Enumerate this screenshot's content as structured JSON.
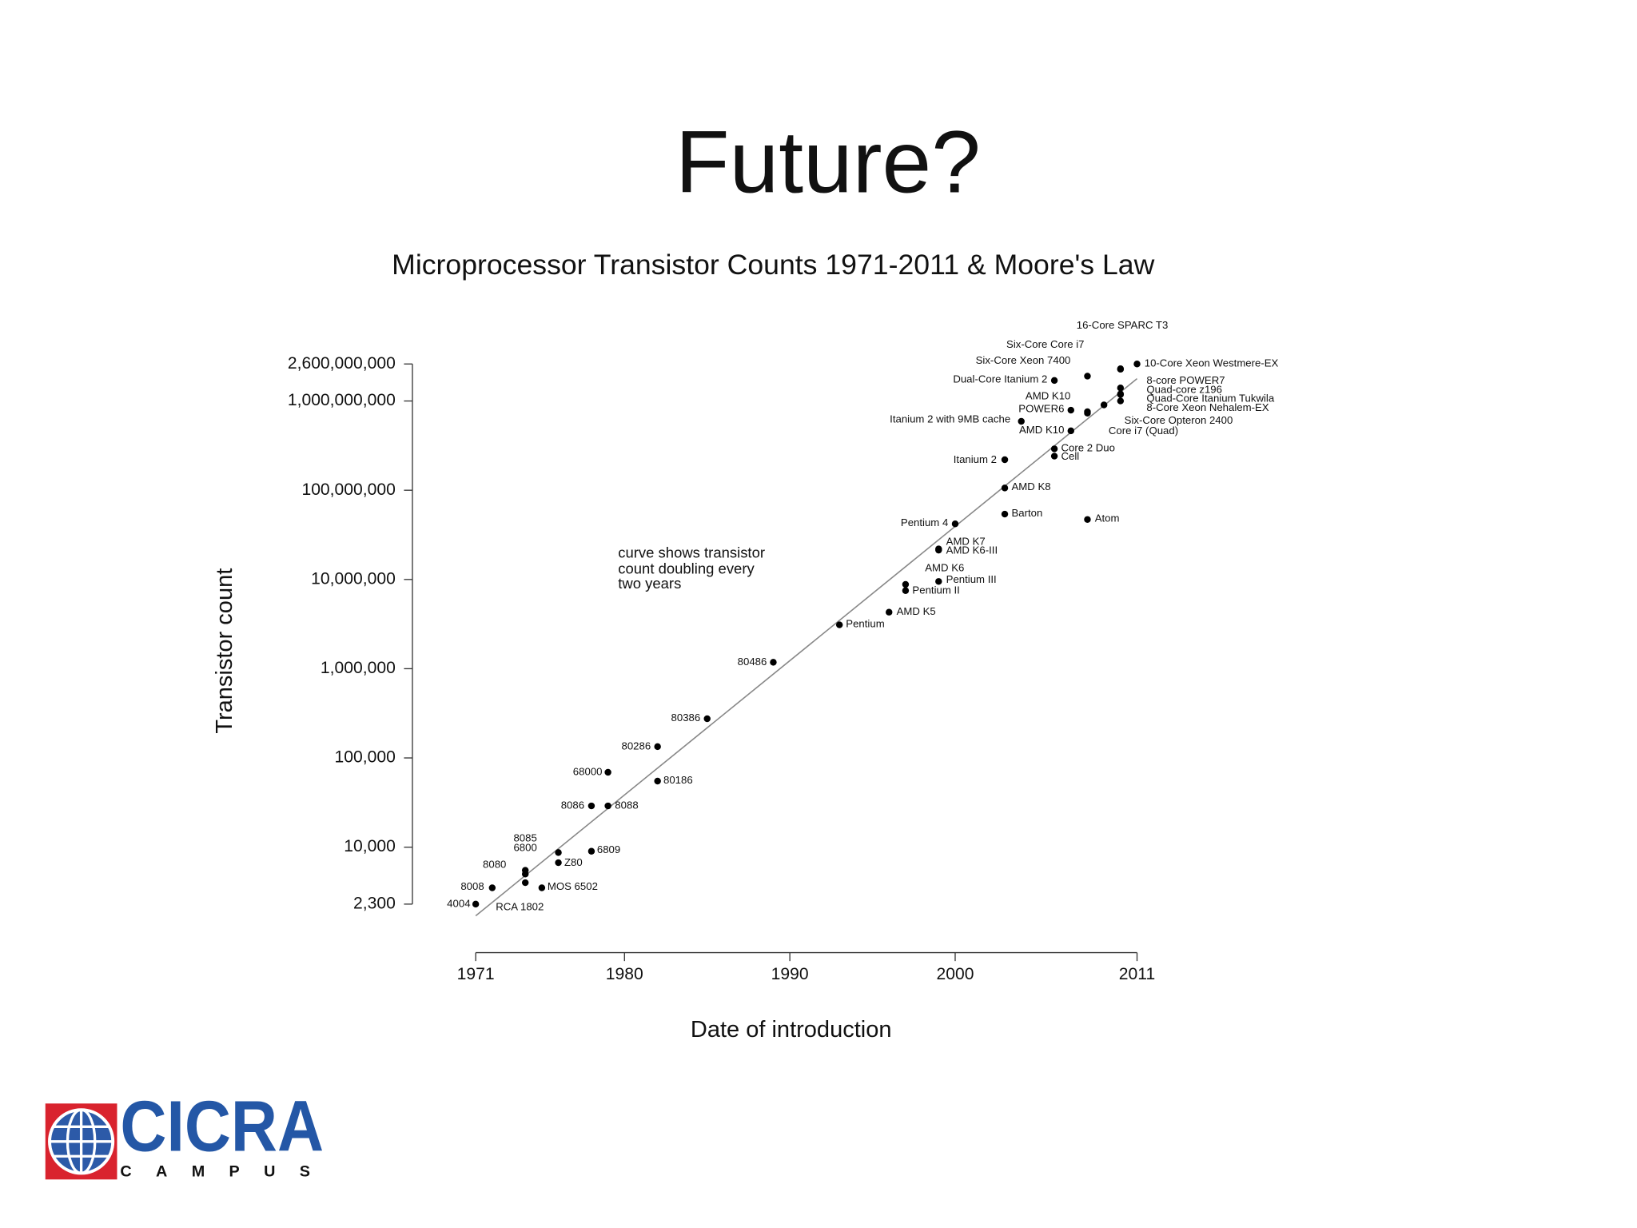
{
  "slide": {
    "title": "Future?"
  },
  "logo": {
    "name": "CICRA",
    "tagline": "CAMPUS"
  },
  "chart_data": {
    "type": "scatter",
    "title": "Microprocessor Transistor Counts 1971-2011 & Moore's Law",
    "x_label": "Date of introduction",
    "y_label": "Transistor count",
    "annotation": [
      "curve shows transistor",
      "count doubling every",
      "two years"
    ],
    "log_y": true,
    "color": "#000000",
    "xlim": [
      1971,
      2011
    ],
    "xticks": [
      1971,
      1980,
      1990,
      2000,
      2011
    ],
    "ylim": [
      2300,
      2600000000
    ],
    "yticks": [
      {
        "value": 2300,
        "label": "2,300"
      },
      {
        "value": 10000,
        "label": "10,000"
      },
      {
        "value": 100000,
        "label": "100,000"
      },
      {
        "value": 1000000,
        "label": "1,000,000"
      },
      {
        "value": 10000000,
        "label": "10,000,000"
      },
      {
        "value": 100000000,
        "label": "100,000,000"
      },
      {
        "value": 1000000000,
        "label": "1,000,000,000"
      },
      {
        "value": 2600000000,
        "label": "2,600,000,000"
      }
    ],
    "labels": [
      "4004",
      "8008",
      "8080",
      "RCA 1802",
      "8085",
      "6800",
      "Z80",
      "MOS 6502",
      "6809",
      "8086",
      "8088",
      "68000",
      "80186",
      "80286",
      "80386",
      "80486",
      "Pentium",
      "AMD K5",
      "Pentium II",
      "AMD K6",
      "Pentium III",
      "AMD K7",
      "AMD K6-III",
      "Pentium 4",
      "Barton",
      "Atom",
      "AMD K8",
      "Itanium 2",
      "Cell",
      "Core 2 Duo",
      "AMD K10",
      "Itanium 2 with 9MB cache",
      "POWER6",
      "AMD K10",
      "Core i7 (Quad)",
      "Six-Core Opteron 2400",
      "8-Core Xeon Nehalem-EX",
      "Quad-Core Itanium Tukwila",
      "Quad-core z196",
      "8-core POWER7",
      "Dual-Core Itanium 2",
      "Six-Core Xeon 7400",
      "Six-Core Core i7",
      "16-Core SPARC T3",
      "10-Core Xeon Westmere-EX"
    ],
    "x": [
      1971,
      1972,
      1974,
      1974,
      1974,
      1976,
      1976,
      1975,
      1978,
      1978,
      1979,
      1979,
      1982,
      1982,
      1985,
      1989,
      1993,
      1996,
      1997,
      1997,
      1999,
      1999,
      1999,
      2000,
      2003,
      2008,
      2003,
      2003,
      2006,
      2006,
      2007,
      2004,
      2007,
      2008,
      2008,
      2009,
      2010,
      2010,
      2010,
      2010,
      2006,
      2008,
      2010,
      2010,
      2011
    ],
    "values": [
      2300,
      3500,
      5000,
      4000,
      5500,
      8700,
      6700,
      3500,
      9000,
      29000,
      29000,
      69000,
      55000,
      134000,
      275000,
      1180000,
      3100000,
      4300000,
      7500000,
      8800000,
      9500000,
      22000000,
      21300000,
      42000000,
      54000000,
      47000000,
      106000000,
      220000000,
      241000000,
      291000000,
      463000000,
      592000000,
      789000000,
      758000000,
      731000000,
      904000000,
      1000000000,
      1180000000,
      1400000000,
      1200000000,
      1700000000,
      1900000000,
      2270000000,
      2300000000,
      2600000000
    ],
    "trend": {
      "x": [
        1971,
        2011
      ],
      "values": [
        1700,
        1780000000
      ],
      "color": "#888888"
    }
  }
}
